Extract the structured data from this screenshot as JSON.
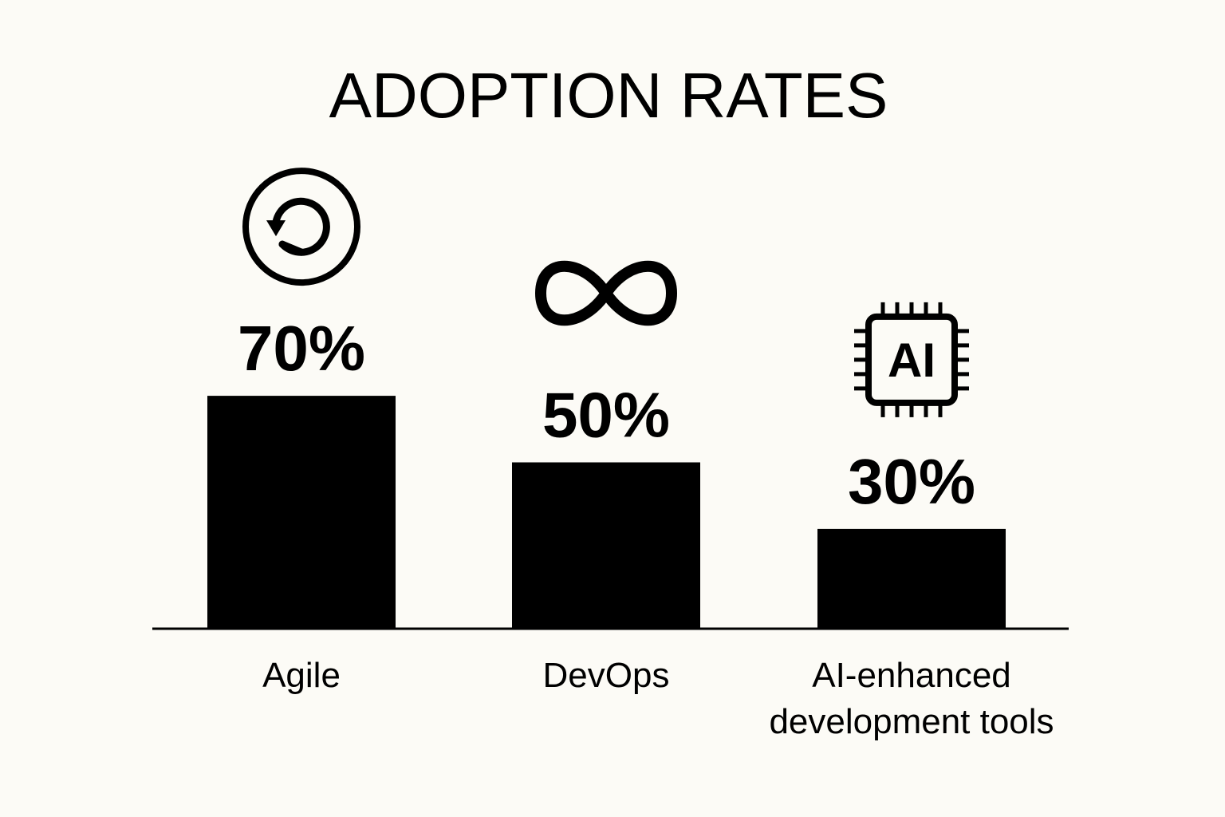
{
  "chart_data": {
    "type": "bar",
    "title": "ADOPTION RATES",
    "categories": [
      "Agile",
      "DevOps",
      "AI-enhanced development tools"
    ],
    "category_lines": [
      [
        "Agile"
      ],
      [
        "DevOps"
      ],
      [
        "AI-enhanced",
        "development tools"
      ]
    ],
    "values": [
      70,
      50,
      30
    ],
    "value_labels": [
      "70%",
      "50%",
      "30%"
    ],
    "icons": [
      "cycle-icon",
      "infinity-icon",
      "ai-chip-icon"
    ],
    "icon_text": {
      "ai_chip": "AI"
    },
    "xlabel": "",
    "ylabel": "",
    "ylim": [
      0,
      100
    ],
    "grid": false,
    "legend": "none",
    "colors": {
      "bar": "#000000",
      "background": "#fcfbf6",
      "text": "#000000"
    }
  }
}
